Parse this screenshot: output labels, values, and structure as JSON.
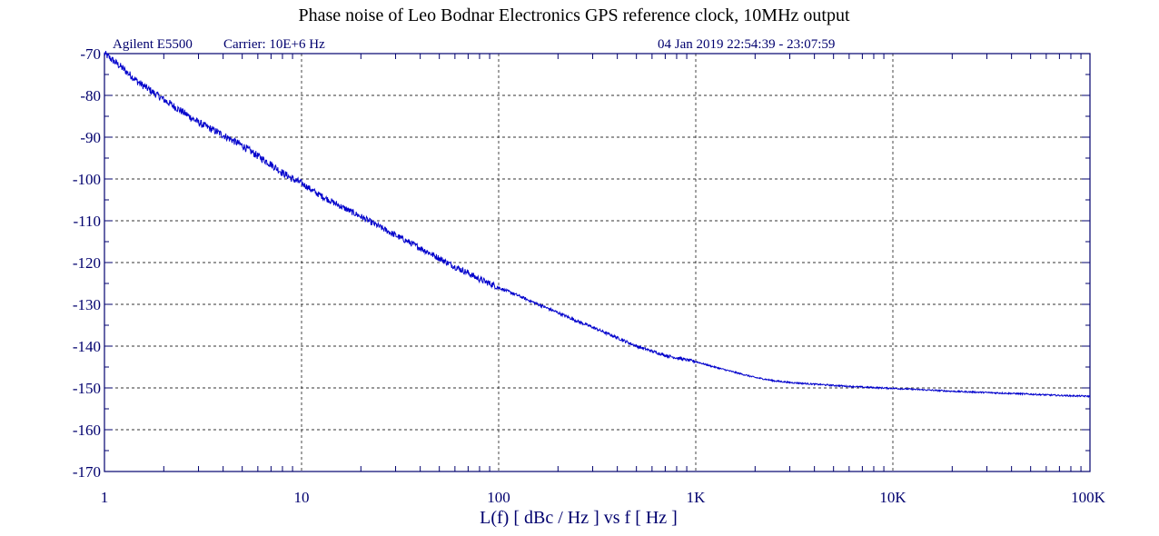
{
  "chart_data": {
    "type": "line",
    "title": "Phase noise of Leo Bodnar Electronics GPS reference clock, 10MHz output",
    "instrument": "Agilent E5500",
    "carrier": "Carrier: 10E+6 Hz",
    "timestamp": "04 Jan 2019  22:54:39 - 23:07:59",
    "xlabel": "L(f)  [ dBc / Hz ]  vs  f  [ Hz ]",
    "ylabel": "",
    "x_scale": "log",
    "xlim": [
      1,
      100000
    ],
    "ylim": [
      -170,
      -70
    ],
    "x_ticks": [
      {
        "value": 1,
        "label": "1"
      },
      {
        "value": 10,
        "label": "10"
      },
      {
        "value": 100,
        "label": "100"
      },
      {
        "value": 1000,
        "label": "1K"
      },
      {
        "value": 10000,
        "label": "10K"
      },
      {
        "value": 100000,
        "label": "100K"
      }
    ],
    "y_ticks": [
      {
        "value": -70,
        "label": "-70"
      },
      {
        "value": -80,
        "label": "-80"
      },
      {
        "value": -90,
        "label": "-90"
      },
      {
        "value": -100,
        "label": "-100"
      },
      {
        "value": -110,
        "label": "-110"
      },
      {
        "value": -120,
        "label": "-120"
      },
      {
        "value": -130,
        "label": "-130"
      },
      {
        "value": -140,
        "label": "-140"
      },
      {
        "value": -150,
        "label": "-150"
      },
      {
        "value": -160,
        "label": "-160"
      },
      {
        "value": -170,
        "label": "-170"
      }
    ],
    "grid": true,
    "series": [
      {
        "color": "#0000cc",
        "x": [
          1,
          1.2,
          1.5,
          2,
          2.5,
          3,
          4,
          5,
          6,
          7,
          8,
          9,
          10,
          12,
          15,
          20,
          25,
          30,
          40,
          50,
          60,
          70,
          80,
          90,
          100,
          120,
          150,
          200,
          250,
          300,
          400,
          500,
          600,
          700,
          800,
          900,
          1000,
          1200,
          1500,
          2000,
          2500,
          3000,
          4000,
          5000,
          7000,
          10000,
          15000,
          20000,
          30000,
          50000,
          70000,
          100000
        ],
        "y": [
          -70,
          -73,
          -77,
          -81,
          -84,
          -86.5,
          -89.5,
          -92,
          -94.5,
          -96.5,
          -98.5,
          -100,
          -101,
          -103.5,
          -106,
          -109,
          -111.5,
          -113.5,
          -116.5,
          -119,
          -121,
          -122.5,
          -124,
          -125,
          -126,
          -127.5,
          -129.5,
          -132,
          -134,
          -135.5,
          -138,
          -140,
          -141.2,
          -142.2,
          -142.8,
          -143.3,
          -143.7,
          -144.8,
          -146,
          -147.5,
          -148.3,
          -148.7,
          -149.1,
          -149.4,
          -149.8,
          -150.1,
          -150.5,
          -150.8,
          -151.1,
          -151.5,
          -151.8,
          -152
        ]
      }
    ]
  }
}
